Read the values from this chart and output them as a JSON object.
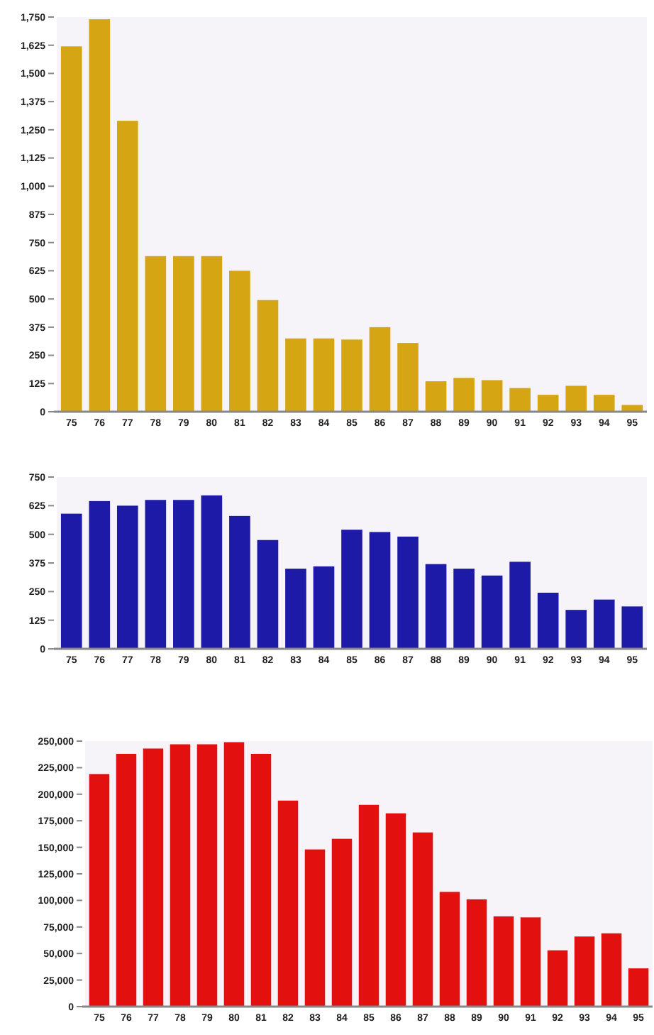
{
  "chart_data": [
    {
      "type": "bar",
      "categories": [
        "75",
        "76",
        "77",
        "78",
        "79",
        "80",
        "81",
        "82",
        "83",
        "84",
        "85",
        "86",
        "87",
        "88",
        "89",
        "90",
        "91",
        "92",
        "93",
        "94",
        "95"
      ],
      "color": "#d6a513",
      "values": [
        1620,
        1740,
        1290,
        690,
        690,
        690,
        625,
        495,
        325,
        325,
        320,
        375,
        305,
        135,
        150,
        140,
        105,
        75,
        115,
        75,
        30
      ],
      "ylim": [
        0,
        1750
      ],
      "yticks": [
        0,
        125,
        250,
        375,
        500,
        625,
        750,
        875,
        {
          "value": 1000,
          "label": "1,000"
        },
        {
          "value": 1125,
          "label": "1,125"
        },
        {
          "value": 1250,
          "label": "1,250"
        },
        {
          "value": 1375,
          "label": "1,375"
        },
        {
          "value": 1500,
          "label": "1,500"
        },
        {
          "value": 1625,
          "label": "1,625"
        },
        {
          "value": 1750,
          "label": "1,750"
        }
      ],
      "grid": false
    },
    {
      "type": "bar",
      "categories": [
        "75",
        "76",
        "77",
        "78",
        "79",
        "80",
        "81",
        "82",
        "83",
        "84",
        "85",
        "86",
        "87",
        "88",
        "89",
        "90",
        "91",
        "92",
        "93",
        "94",
        "95"
      ],
      "color": "#1e1aa8",
      "values": [
        590,
        645,
        625,
        650,
        650,
        670,
        580,
        475,
        350,
        360,
        520,
        510,
        490,
        370,
        350,
        320,
        380,
        245,
        170,
        215,
        185
      ],
      "ylim": [
        0,
        750
      ],
      "yticks": [
        0,
        125,
        250,
        375,
        500,
        625,
        750
      ],
      "grid": false
    },
    {
      "type": "bar",
      "categories": [
        "75",
        "76",
        "77",
        "78",
        "79",
        "80",
        "81",
        "82",
        "83",
        "84",
        "85",
        "86",
        "87",
        "88",
        "89",
        "90",
        "91",
        "92",
        "93",
        "94",
        "95"
      ],
      "color": "#e31010",
      "values": [
        219000,
        238000,
        243000,
        247000,
        247000,
        249000,
        238000,
        194000,
        148000,
        158000,
        190000,
        182000,
        164000,
        108000,
        101000,
        85000,
        84000,
        53000,
        66000,
        69000,
        36000
      ],
      "ylim": [
        0,
        250000
      ],
      "yticks": [
        0,
        {
          "value": 25000,
          "label": "25,000"
        },
        {
          "value": 50000,
          "label": "50,000"
        },
        {
          "value": 75000,
          "label": "75,000"
        },
        {
          "value": 100000,
          "label": "100,000"
        },
        {
          "value": 125000,
          "label": "125,000"
        },
        {
          "value": 150000,
          "label": "150,000"
        },
        {
          "value": 175000,
          "label": "175,000"
        },
        {
          "value": 200000,
          "label": "200,000"
        },
        {
          "value": 225000,
          "label": "225,000"
        },
        {
          "value": 250000,
          "label": "250,000"
        }
      ],
      "grid": false
    }
  ]
}
